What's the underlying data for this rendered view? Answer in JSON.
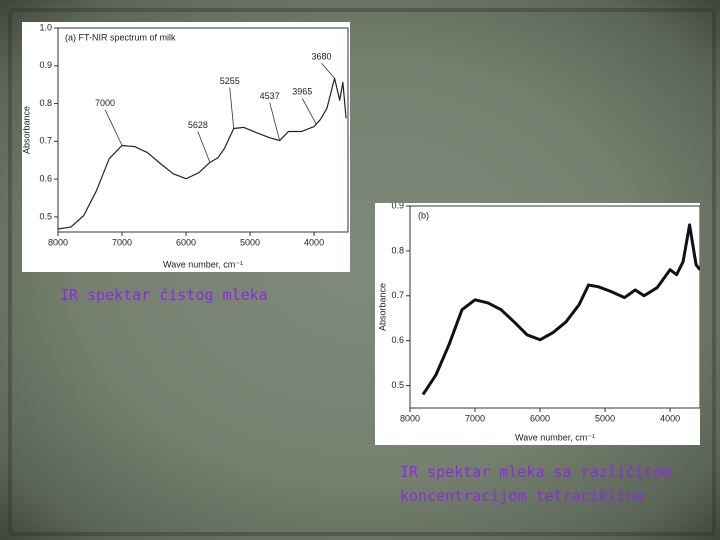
{
  "chart_data": [
    {
      "type": "line",
      "title": "(a) FT-NIR spectrum of milk",
      "x_label": "Wave number, cm⁻¹",
      "y_label": "Absorbance",
      "x": [
        8000,
        7800,
        7600,
        7400,
        7200,
        7000,
        6800,
        6600,
        6400,
        6200,
        6000,
        5800,
        5628,
        5500,
        5400,
        5255,
        5100,
        4900,
        4700,
        4537,
        4400,
        4200,
        4000,
        3900,
        3800,
        3680,
        3600,
        3550,
        3500
      ],
      "values": [
        0.468,
        0.473,
        0.503,
        0.569,
        0.654,
        0.689,
        0.686,
        0.67,
        0.641,
        0.614,
        0.601,
        0.617,
        0.644,
        0.657,
        0.681,
        0.734,
        0.737,
        0.723,
        0.71,
        0.702,
        0.726,
        0.726,
        0.739,
        0.758,
        0.787,
        0.867,
        0.809,
        0.856,
        0.761
      ],
      "color": "#222222",
      "xlim": [
        8000,
        3470
      ],
      "xticks": [
        8000,
        7000,
        6000,
        5000,
        4000
      ],
      "ylim": [
        0.46,
        1.0
      ],
      "yticks": [
        0.5,
        0.6,
        0.7,
        0.8,
        0.9,
        {
          "value": 1,
          "label": "1.0"
        }
      ],
      "annotations": [
        {
          "text": "7000",
          "x": 7000,
          "y": 0.689
        },
        {
          "text": "5628",
          "x": 5628,
          "y": 0.644
        },
        {
          "text": "5255",
          "x": 5255,
          "y": 0.734
        },
        {
          "text": "4537",
          "x": 4537,
          "y": 0.702
        },
        {
          "text": "3965",
          "x": 3965,
          "y": 0.745
        },
        {
          "text": "3680",
          "x": 3680,
          "y": 0.867
        }
      ]
    },
    {
      "type": "line",
      "title": "(b)",
      "x_label": "Wave number, cm⁻¹",
      "y_label": "Absorbance",
      "x": [
        7800,
        7600,
        7400,
        7200,
        7000,
        6800,
        6600,
        6400,
        6200,
        6000,
        5800,
        5600,
        5400,
        5255,
        5100,
        4900,
        4700,
        4537,
        4400,
        4200,
        4000,
        3900,
        3800,
        3700,
        3650,
        3600,
        3540
      ],
      "values": [
        0.48,
        0.524,
        0.591,
        0.669,
        0.691,
        0.684,
        0.669,
        0.642,
        0.613,
        0.602,
        0.618,
        0.642,
        0.68,
        0.724,
        0.72,
        0.709,
        0.696,
        0.713,
        0.7,
        0.718,
        0.758,
        0.747,
        0.776,
        0.858,
        0.813,
        0.769,
        0.758
      ],
      "color": "#111111",
      "xlim": [
        8000,
        3540
      ],
      "xticks": [
        8000,
        7000,
        6000,
        5000,
        4000
      ],
      "ylim": [
        0.45,
        0.9
      ],
      "yticks": [
        0.5,
        0.6,
        0.7,
        0.8,
        0.9
      ]
    }
  ],
  "captions": [
    [
      "IR spektar čistog mleka"
    ],
    [
      "IR spektar mleka sa različitom",
      "koncentracijom tetraciklina"
    ]
  ]
}
